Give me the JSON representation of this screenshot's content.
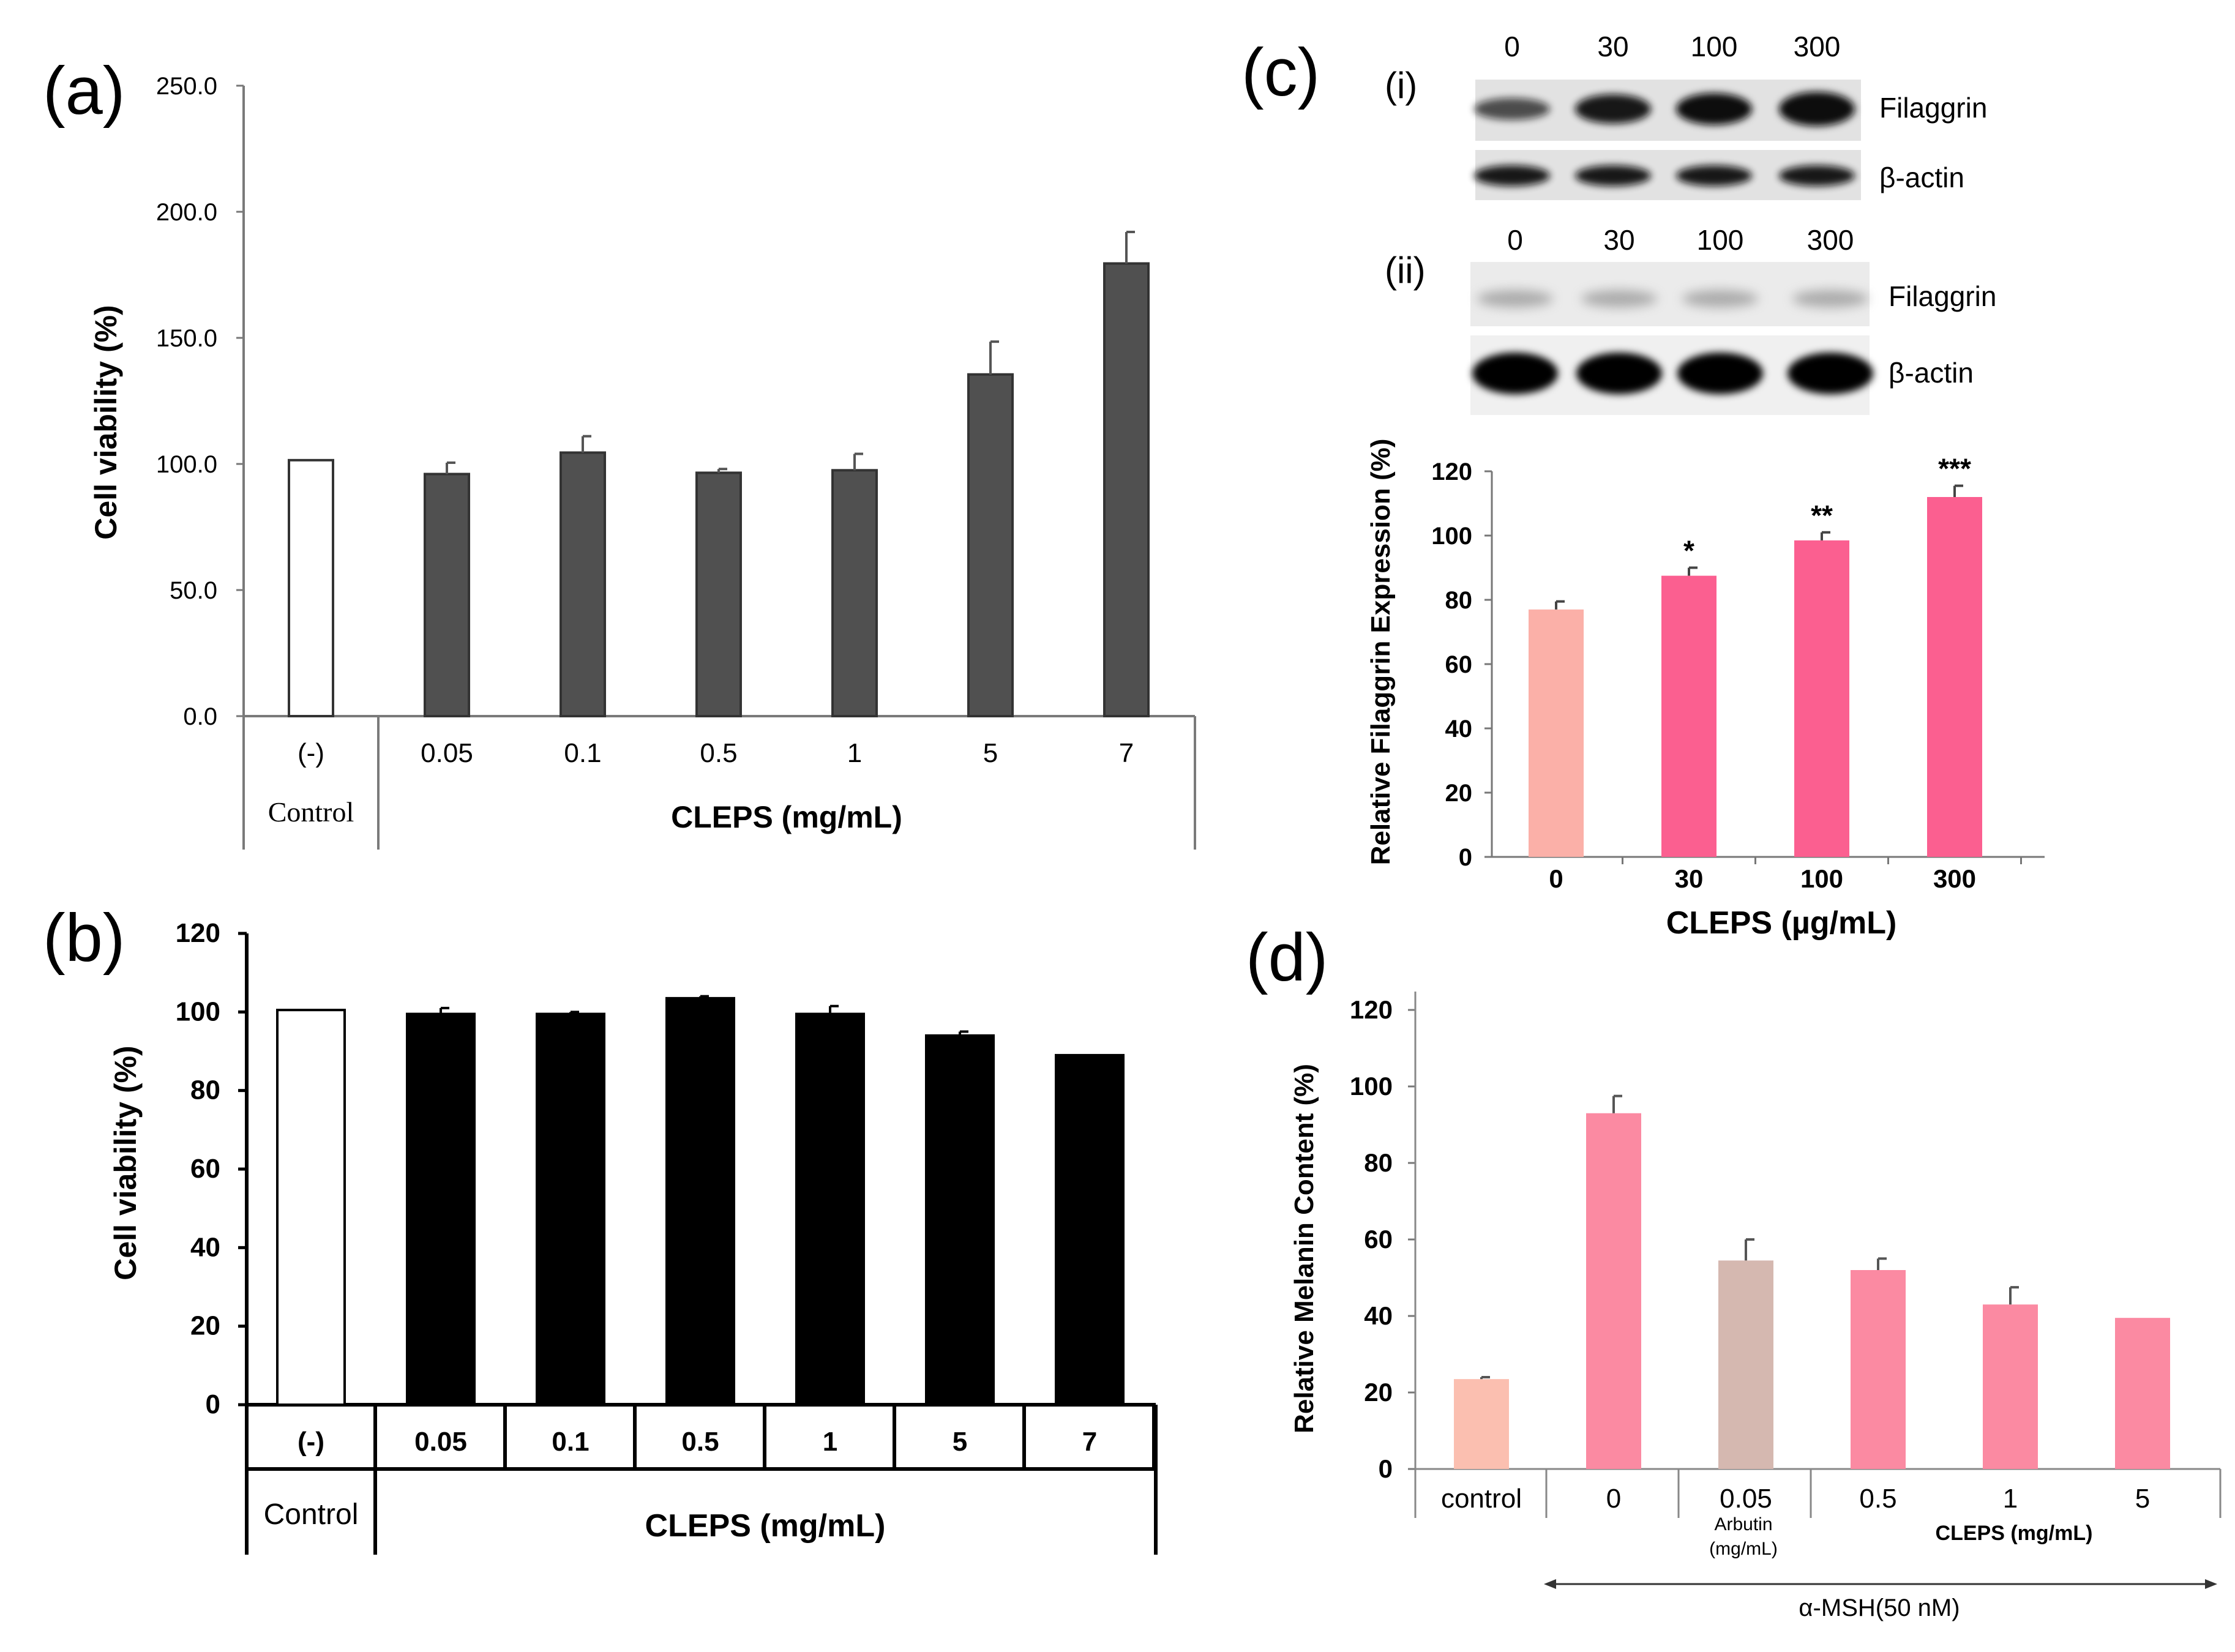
{
  "panel_labels": {
    "a": "(a)",
    "b": "(b)",
    "c": "(c)",
    "d": "(d)",
    "c_i": "(i)",
    "c_ii": "(ii)"
  },
  "chart_data": [
    {
      "id": "a",
      "type": "bar",
      "categories": [
        "(-)",
        "0.05",
        "0.1",
        "0.5",
        "1",
        "5",
        "7"
      ],
      "values": [
        101.5,
        96.0,
        104.5,
        96.5,
        97.5,
        135.5,
        179.5
      ],
      "errors": [
        0,
        4.5,
        6.5,
        1.5,
        6.5,
        13.0,
        12.5
      ],
      "bar_fill": [
        "#ffffff",
        "#505050",
        "#505050",
        "#505050",
        "#505050",
        "#505050",
        "#505050"
      ],
      "ylim": [
        0,
        250
      ],
      "yticks": [
        "0.0",
        "50.0",
        "100.0",
        "150.0",
        "200.0",
        "250.0"
      ],
      "ylabel": "Cell viability (%)",
      "group_labels": [
        "Control",
        "CLEPS (mg/mL)"
      ]
    },
    {
      "id": "b",
      "type": "bar",
      "categories": [
        "(-)",
        "0.05",
        "0.1",
        "0.5",
        "1",
        "5",
        "7"
      ],
      "values": [
        100.5,
        99.5,
        99.5,
        103.5,
        99.5,
        94.0,
        89.0
      ],
      "errors": [
        0,
        1.5,
        0.5,
        0.5,
        2.0,
        1.0,
        0
      ],
      "bar_fill": [
        "#ffffff",
        "#000000",
        "#000000",
        "#000000",
        "#000000",
        "#000000",
        "#000000"
      ],
      "ylim": [
        0,
        120
      ],
      "yticks": [
        "0",
        "20",
        "40",
        "60",
        "80",
        "100",
        "120"
      ],
      "ylabel": "Cell viability (%)",
      "group_labels": [
        "Control",
        "CLEPS (mg/mL)"
      ]
    },
    {
      "id": "c",
      "type": "bar",
      "categories": [
        "0",
        "30",
        "100",
        "300"
      ],
      "values": [
        77,
        87.5,
        98.5,
        112
      ],
      "errors": [
        2.5,
        2.5,
        2.5,
        3.5
      ],
      "significance": [
        "",
        "*",
        "**",
        "***"
      ],
      "bar_fill": [
        "#fbb0a8",
        "#fb5f90",
        "#fb5f90",
        "#fb5f90"
      ],
      "ylim": [
        0,
        120
      ],
      "yticks": [
        "0",
        "20",
        "40",
        "60",
        "80",
        "100",
        "120"
      ],
      "ylabel": "Relative Filaggrin Expression (%)",
      "xlabel": "CLEPS (µg/mL)"
    },
    {
      "id": "d",
      "type": "bar",
      "categories": [
        "control",
        "0",
        "0.05",
        "0.5",
        "1",
        "5"
      ],
      "values": [
        23.5,
        93,
        54.5,
        52,
        43,
        39.5
      ],
      "errors": [
        0.5,
        4.5,
        5.5,
        3.0,
        4.5,
        0
      ],
      "bar_fill": [
        "#fbbfb0",
        "#fb8aa2",
        "#d5b8b0",
        "#fb8aa2",
        "#fb8aa2",
        "#fb8aa2"
      ],
      "ylim": [
        0,
        120
      ],
      "yticks": [
        "0",
        "20",
        "40",
        "60",
        "80",
        "100",
        "120"
      ],
      "ylabel": "Relative Melanin Content (%)",
      "group_labels": [
        "Arbutin (mg/mL)",
        "CLEPS (mg/mL)"
      ],
      "bracket_label": "α-MSH(50 nM)"
    }
  ],
  "western_blots": {
    "i": {
      "doses": [
        "0",
        "30",
        "100",
        "300"
      ],
      "rows": [
        "Filaggrin",
        "β-actin"
      ]
    },
    "ii": {
      "doses": [
        "0",
        "30",
        "100",
        "300"
      ],
      "rows": [
        "Filaggrin",
        "β-actin"
      ]
    }
  }
}
